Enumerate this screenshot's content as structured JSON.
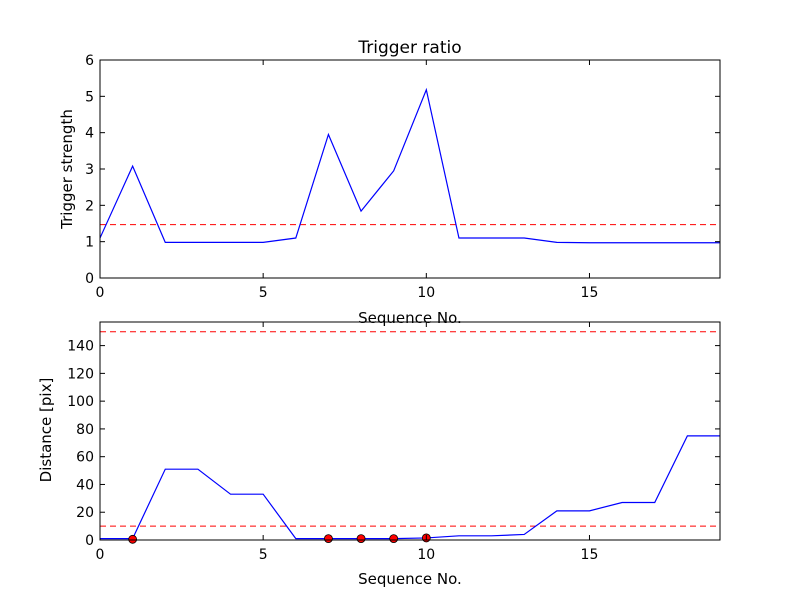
{
  "chart_data": [
    {
      "type": "line",
      "title": "Trigger ratio",
      "xlabel": "Sequence No.",
      "ylabel": "Trigger strength",
      "xlim": [
        0,
        19
      ],
      "ylim": [
        0,
        6
      ],
      "xticks": [
        0,
        5,
        10,
        15
      ],
      "yticks": [
        0,
        1,
        2,
        3,
        4,
        5,
        6
      ],
      "grid": false,
      "series": [
        {
          "color": "#0000ff",
          "x": [
            0,
            1,
            2,
            3,
            4,
            5,
            6,
            7,
            8,
            9,
            10,
            11,
            12,
            13,
            14,
            15,
            16,
            17,
            18,
            19
          ],
          "y": [
            1.1,
            3.08,
            0.98,
            0.98,
            0.98,
            0.98,
            1.1,
            3.95,
            1.84,
            2.95,
            5.18,
            1.1,
            1.1,
            1.1,
            0.98,
            0.97,
            0.97,
            0.97,
            0.97,
            0.97
          ]
        }
      ],
      "hlines": [
        {
          "y": 1.47,
          "color": "#ff0000",
          "style": "dashed"
        }
      ]
    },
    {
      "type": "line",
      "title": "",
      "xlabel": "Sequence No.",
      "ylabel": "Distance [pix]",
      "xlim": [
        0,
        19
      ],
      "ylim": [
        0,
        157
      ],
      "xticks": [
        0,
        5,
        10,
        15
      ],
      "yticks": [
        0,
        20,
        40,
        60,
        80,
        100,
        120,
        140
      ],
      "grid": false,
      "series": [
        {
          "color": "#0000ff",
          "x": [
            0,
            1,
            2,
            3,
            4,
            5,
            6,
            7,
            8,
            9,
            10,
            11,
            12,
            13,
            14,
            15,
            16,
            17,
            18,
            19
          ],
          "y": [
            1,
            1,
            51,
            51,
            33,
            33,
            1,
            1,
            1,
            1,
            1.5,
            3,
            3,
            4,
            21,
            21,
            27,
            27,
            75,
            75
          ]
        }
      ],
      "markers": {
        "color": "#ff0000",
        "x": [
          1,
          7,
          8,
          9,
          10
        ],
        "y": [
          0.5,
          1,
          1,
          1,
          1.5
        ]
      },
      "hlines": [
        {
          "y": 150,
          "color": "#ff0000",
          "style": "dashed"
        },
        {
          "y": 10,
          "color": "#ff0000",
          "style": "dashed"
        }
      ]
    }
  ]
}
